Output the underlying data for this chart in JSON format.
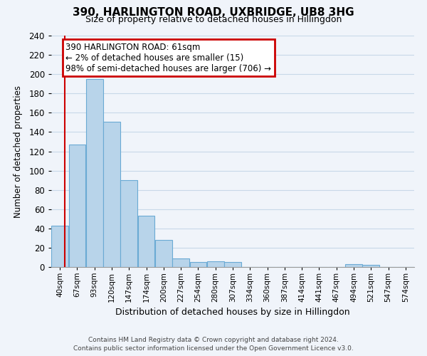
{
  "title": "390, HARLINGTON ROAD, UXBRIDGE, UB8 3HG",
  "subtitle": "Size of property relative to detached houses in Hillingdon",
  "xlabel": "Distribution of detached houses by size in Hillingdon",
  "ylabel": "Number of detached properties",
  "footer_line1": "Contains HM Land Registry data © Crown copyright and database right 2024.",
  "footer_line2": "Contains public sector information licensed under the Open Government Licence v3.0.",
  "bin_labels": [
    "40sqm",
    "67sqm",
    "93sqm",
    "120sqm",
    "147sqm",
    "174sqm",
    "200sqm",
    "227sqm",
    "254sqm",
    "280sqm",
    "307sqm",
    "334sqm",
    "360sqm",
    "387sqm",
    "414sqm",
    "441sqm",
    "467sqm",
    "494sqm",
    "521sqm",
    "547sqm",
    "574sqm"
  ],
  "bar_values": [
    43,
    127,
    195,
    151,
    90,
    53,
    28,
    9,
    5,
    6,
    5,
    0,
    0,
    0,
    0,
    0,
    0,
    3,
    2,
    0,
    0
  ],
  "bar_color": "#b8d4ea",
  "bar_edge_color": "#6aaad4",
  "ylim": [
    0,
    240
  ],
  "yticks": [
    0,
    20,
    40,
    60,
    80,
    100,
    120,
    140,
    160,
    180,
    200,
    220,
    240
  ],
  "annotation_title": "390 HARLINGTON ROAD: 61sqm",
  "annotation_line1": "← 2% of detached houses are smaller (15)",
  "annotation_line2": "98% of semi-detached houses are larger (706) →",
  "annotation_box_color": "#ffffff",
  "annotation_box_edge": "#cc0000",
  "red_line_color": "#cc0000",
  "background_color": "#f0f4fa",
  "grid_color": "#c8d8e8"
}
